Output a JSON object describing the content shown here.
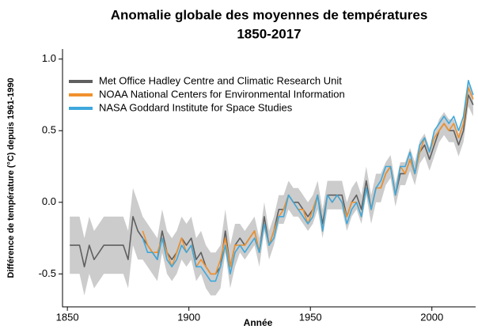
{
  "chart_data": {
    "type": "line",
    "title": "Anomalie globale des moyennes de températures",
    "subtitle": "1850-2017",
    "xlabel": "Année",
    "ylabel": "Différence de température (°C) depuis 1961-1990",
    "x": [
      1851,
      1853,
      1855,
      1857,
      1859,
      1861,
      1863,
      1865,
      1867,
      1869,
      1871,
      1873,
      1875,
      1877,
      1879,
      1881,
      1883,
      1885,
      1887,
      1889,
      1891,
      1893,
      1895,
      1897,
      1899,
      1901,
      1903,
      1905,
      1907,
      1909,
      1911,
      1913,
      1915,
      1917,
      1919,
      1921,
      1923,
      1925,
      1927,
      1929,
      1931,
      1933,
      1935,
      1937,
      1939,
      1941,
      1943,
      1945,
      1947,
      1949,
      1951,
      1953,
      1955,
      1957,
      1959,
      1961,
      1963,
      1965,
      1967,
      1969,
      1971,
      1973,
      1975,
      1977,
      1979,
      1981,
      1983,
      1985,
      1987,
      1989,
      1991,
      1993,
      1995,
      1997,
      1999,
      2001,
      2003,
      2005,
      2007,
      2009,
      2011,
      2013,
      2015,
      2017
    ],
    "series": [
      {
        "name": "Met Office Hadley Centre and Climatic Research Unit",
        "color": "#5f5f5f",
        "values": [
          -0.3,
          -0.3,
          -0.3,
          -0.45,
          -0.3,
          -0.4,
          -0.35,
          -0.3,
          -0.3,
          -0.3,
          -0.3,
          -0.3,
          -0.4,
          -0.1,
          -0.2,
          -0.25,
          -0.3,
          -0.35,
          -0.4,
          -0.2,
          -0.35,
          -0.4,
          -0.35,
          -0.25,
          -0.3,
          -0.25,
          -0.4,
          -0.35,
          -0.45,
          -0.5,
          -0.5,
          -0.45,
          -0.2,
          -0.45,
          -0.3,
          -0.25,
          -0.3,
          -0.25,
          -0.2,
          -0.35,
          -0.1,
          -0.3,
          -0.2,
          -0.05,
          -0.05,
          0.05,
          0.0,
          0.0,
          -0.05,
          -0.1,
          -0.05,
          0.05,
          -0.15,
          0.05,
          0.05,
          0.05,
          0.05,
          -0.1,
          0.0,
          0.05,
          -0.05,
          0.15,
          -0.05,
          0.1,
          0.1,
          0.2,
          0.25,
          0.05,
          0.2,
          0.2,
          0.3,
          0.2,
          0.35,
          0.4,
          0.3,
          0.4,
          0.5,
          0.55,
          0.5,
          0.5,
          0.4,
          0.5,
          0.75,
          0.68
        ],
        "errors": [
          0.2,
          0.2,
          0.2,
          0.2,
          0.2,
          0.2,
          0.2,
          0.2,
          0.2,
          0.2,
          0.2,
          0.2,
          0.2,
          0.2,
          0.2,
          0.15,
          0.15,
          0.15,
          0.15,
          0.15,
          0.15,
          0.15,
          0.15,
          0.15,
          0.15,
          0.15,
          0.15,
          0.15,
          0.15,
          0.15,
          0.15,
          0.15,
          0.15,
          0.15,
          0.15,
          0.1,
          0.1,
          0.1,
          0.1,
          0.1,
          0.1,
          0.1,
          0.1,
          0.1,
          0.1,
          0.1,
          0.1,
          0.1,
          0.1,
          0.1,
          0.1,
          0.1,
          0.1,
          0.1,
          0.1,
          0.1,
          0.1,
          0.1,
          0.1,
          0.1,
          0.1,
          0.1,
          0.1,
          0.1,
          0.1,
          0.08,
          0.08,
          0.08,
          0.08,
          0.08,
          0.08,
          0.08,
          0.08,
          0.08,
          0.08,
          0.08,
          0.08,
          0.08,
          0.08,
          0.08,
          0.08,
          0.08,
          0.08,
          0.08
        ]
      },
      {
        "name": "NOAA National Centers for Environmental Information",
        "color": "#f0912e",
        "values": [
          null,
          null,
          null,
          null,
          null,
          null,
          null,
          null,
          null,
          null,
          null,
          null,
          null,
          null,
          null,
          -0.2,
          -0.3,
          -0.35,
          -0.35,
          -0.25,
          -0.35,
          -0.45,
          -0.35,
          -0.25,
          -0.35,
          -0.3,
          -0.45,
          -0.4,
          -0.45,
          -0.5,
          -0.5,
          -0.4,
          -0.25,
          -0.45,
          -0.3,
          -0.3,
          -0.3,
          -0.25,
          -0.2,
          -0.35,
          -0.15,
          -0.3,
          -0.2,
          -0.1,
          -0.05,
          0.05,
          0.0,
          -0.05,
          -0.05,
          -0.15,
          -0.05,
          0.05,
          -0.2,
          0.05,
          0.0,
          0.05,
          0.0,
          -0.1,
          0.0,
          0.0,
          -0.1,
          0.1,
          -0.05,
          0.1,
          0.1,
          0.2,
          0.25,
          0.05,
          0.25,
          0.2,
          0.3,
          0.2,
          0.35,
          0.45,
          0.35,
          0.45,
          0.5,
          0.55,
          0.5,
          0.55,
          0.45,
          0.55,
          0.8,
          0.72
        ]
      },
      {
        "name": "NASA Goddard Institute for Space Studies",
        "color": "#3ea8dc",
        "values": [
          null,
          null,
          null,
          null,
          null,
          null,
          null,
          null,
          null,
          null,
          null,
          null,
          null,
          null,
          null,
          -0.25,
          -0.35,
          -0.35,
          -0.4,
          -0.25,
          -0.4,
          -0.45,
          -0.4,
          -0.3,
          -0.35,
          -0.3,
          -0.45,
          -0.45,
          -0.5,
          -0.55,
          -0.55,
          -0.45,
          -0.3,
          -0.5,
          -0.35,
          -0.3,
          -0.35,
          -0.3,
          -0.25,
          -0.35,
          -0.15,
          -0.3,
          -0.25,
          -0.1,
          -0.1,
          0.05,
          0.0,
          -0.05,
          -0.1,
          -0.15,
          -0.1,
          0.05,
          -0.2,
          0.05,
          0.0,
          0.05,
          0.0,
          -0.15,
          -0.05,
          0.0,
          -0.1,
          0.1,
          -0.05,
          0.1,
          0.15,
          0.25,
          0.25,
          0.05,
          0.25,
          0.25,
          0.35,
          0.2,
          0.4,
          0.45,
          0.35,
          0.5,
          0.55,
          0.6,
          0.55,
          0.6,
          0.5,
          0.6,
          0.85,
          0.75
        ]
      }
    ],
    "band_color": "#cccccc",
    "xlim": [
      1848,
      2018
    ],
    "xticks": [
      1850,
      1900,
      1950,
      2000
    ],
    "ylim": [
      -0.73,
      1.07
    ],
    "yticks": [
      {
        "value": -0.5,
        "label": "-0.5"
      },
      {
        "value": 0,
        "label": "0.0"
      },
      {
        "value": 0.5,
        "label": "0.5"
      },
      {
        "value": 1,
        "label": "1.0"
      }
    ],
    "legend": "upper left"
  }
}
